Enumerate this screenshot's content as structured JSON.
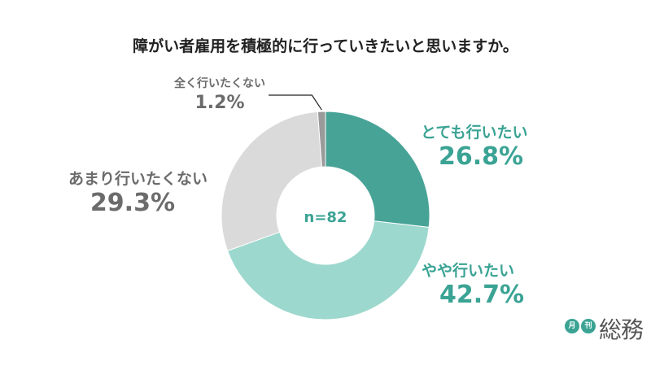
{
  "colors": {
    "accent": "#3aa394",
    "gray_text": "#6b6b6b",
    "title_text": "#222222",
    "logo_text": "#555555"
  },
  "chart_data": {
    "type": "pie",
    "title": "障がい者雇用を積極的に行っていきたいと思いますか。",
    "center_label": "n=82",
    "categories": [
      "とても行いたい",
      "やや行いたい",
      "あまり行いたくない",
      "全く行いたくない"
    ],
    "values": [
      26.8,
      42.7,
      29.3,
      1.2
    ],
    "value_labels": [
      "26.8%",
      "42.7%",
      "29.3%",
      "1.2%"
    ],
    "colors": [
      "#48a397",
      "#9cd8cd",
      "#dadada",
      "#9a9a9a"
    ],
    "label_colors": [
      "#3aa394",
      "#3aa394",
      "#6b6b6b",
      "#6b6b6b"
    ],
    "donut": true
  },
  "logo": {
    "badge_1": "月",
    "badge_2": "刊",
    "text": "総務"
  }
}
